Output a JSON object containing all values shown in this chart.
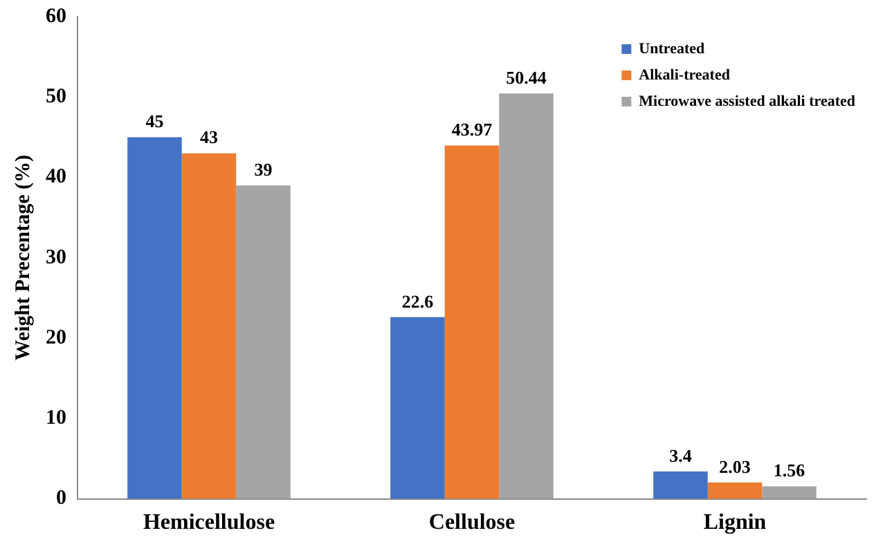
{
  "chart_data": {
    "type": "bar",
    "ylabel": "Weight Precentage (%)",
    "categories": [
      "Hemicellulose",
      "Cellulose",
      "Lignin"
    ],
    "series": [
      {
        "name": "Untreated",
        "color": "#4472c4",
        "values": [
          45,
          22.6,
          3.4
        ]
      },
      {
        "name": "Alkali-treated",
        "color": "#ed7d31",
        "values": [
          43,
          43.97,
          2.03
        ]
      },
      {
        "name": "Microwave assisted alkali treated",
        "color": "#a5a5a5",
        "values": [
          39,
          50.44,
          1.56
        ]
      }
    ],
    "ylim": [
      0,
      60
    ],
    "yticks": [
      0,
      10,
      20,
      30,
      40,
      50,
      60
    ],
    "grid": false,
    "legend": "top right",
    "data_labels": true
  }
}
